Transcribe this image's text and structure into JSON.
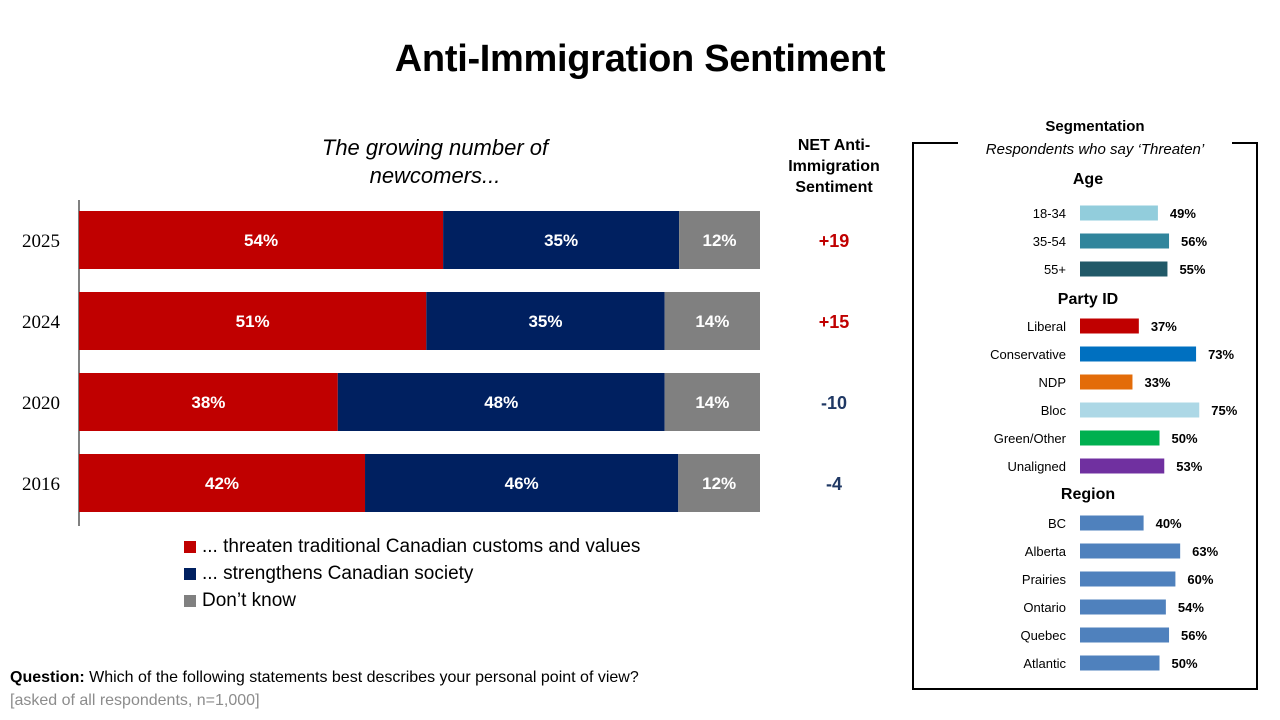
{
  "title": "Anti-Immigration Sentiment",
  "subtitle": "The growing number of newcomers...",
  "net_header": "NET Anti-Immigration Sentiment",
  "question_label": "Question:",
  "question_text": "Which of the following statements best describes your personal point of view?",
  "note": "[asked of all respondents, n=1,000]",
  "segmentation": {
    "title": "Segmentation",
    "subtitle": "Respondents who say ‘Threaten’"
  },
  "chart_data": [
    {
      "type": "bar",
      "orientation": "horizontal",
      "stacked": true,
      "title": "The growing number of newcomers...",
      "categories": [
        "2025",
        "2024",
        "2020",
        "2016"
      ],
      "series": [
        {
          "name": "... threaten traditional Canadian customs and values",
          "color": "#C00000",
          "values": [
            54,
            51,
            38,
            42
          ]
        },
        {
          "name": "... strengthens Canadian society",
          "color": "#002060",
          "values": [
            35,
            35,
            48,
            46
          ]
        },
        {
          "name": "Don’t know",
          "color": "#808080",
          "values": [
            12,
            14,
            14,
            12
          ]
        }
      ],
      "data_labels": [
        [
          "54%",
          "35%",
          "12%"
        ],
        [
          "51%",
          "35%",
          "14%"
        ],
        [
          "38%",
          "48%",
          "14%"
        ],
        [
          "42%",
          "46%",
          "12%"
        ]
      ],
      "net": {
        "header": "NET Anti-Immigration Sentiment",
        "values": [
          "+19",
          "+15",
          "-10",
          "-4"
        ],
        "positive_color": "#C00000",
        "negative_color": "#1F3864"
      },
      "xlim": [
        0,
        100
      ],
      "legend": "bottom",
      "grid": false
    },
    {
      "type": "bar",
      "orientation": "horizontal",
      "title": "Segmentation — Respondents who say ‘Threaten’",
      "xlim": [
        0,
        100
      ],
      "grid": false,
      "groups": [
        {
          "name": "Age",
          "categories": [
            "18-34",
            "35-54",
            "55+"
          ],
          "values": [
            49,
            56,
            55
          ],
          "labels": [
            "49%",
            "56%",
            "55%"
          ],
          "colors": [
            "#92CDDC",
            "#31859C",
            "#215968"
          ]
        },
        {
          "name": "Party ID",
          "categories": [
            "Liberal",
            "Conservative",
            "NDP",
            "Bloc",
            "Green/Other",
            "Unaligned"
          ],
          "values": [
            37,
            73,
            33,
            75,
            50,
            53
          ],
          "labels": [
            "37%",
            "73%",
            "33%",
            "75%",
            "50%",
            "53%"
          ],
          "colors": [
            "#C00000",
            "#0070C0",
            "#E36C09",
            "#ADD8E6",
            "#00B050",
            "#7030A0"
          ]
        },
        {
          "name": "Region",
          "categories": [
            "BC",
            "Alberta",
            "Prairies",
            "Ontario",
            "Quebec",
            "Atlantic"
          ],
          "values": [
            40,
            63,
            60,
            54,
            56,
            50
          ],
          "labels": [
            "40%",
            "63%",
            "60%",
            "54%",
            "56%",
            "50%"
          ],
          "colors": [
            "#4F81BD",
            "#4F81BD",
            "#4F81BD",
            "#4F81BD",
            "#4F81BD",
            "#4F81BD"
          ]
        }
      ]
    }
  ]
}
